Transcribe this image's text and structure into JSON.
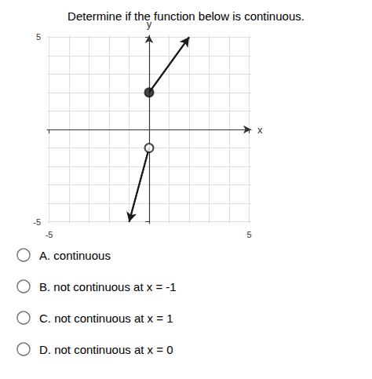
{
  "chart_data": {
    "type": "line",
    "title": "Determine if the function below is continuous.",
    "xlabel": "x",
    "ylabel": "y",
    "xlim": [
      -5.1,
      5.1
    ],
    "ylim": [
      -5.1,
      5.1
    ],
    "xticks": [
      -5,
      5
    ],
    "yticks": [
      -5,
      5
    ],
    "grid": true,
    "series": [
      {
        "type": "line",
        "x": [
          -1,
          0
        ],
        "values": [
          -5,
          -1
        ],
        "color": "#1a1a1a",
        "marker": "arrow-start"
      },
      {
        "type": "line",
        "x": [
          0,
          2
        ],
        "values": [
          2,
          5
        ],
        "color": "#1a1a1a",
        "marker": "arrow-end"
      },
      {
        "type": "scatter",
        "x": [
          0
        ],
        "values": [
          -1
        ],
        "color": "#1a1a1a",
        "marker": "open_circle"
      },
      {
        "type": "scatter",
        "x": [
          0
        ],
        "values": [
          2
        ],
        "color": "#1a1a1a",
        "marker": "circle"
      }
    ],
    "annotations": [
      "A. continuous",
      "B. not continuous at x = -1",
      "C. not continuous at x = 1",
      "D. not continuous at x = 0"
    ]
  }
}
